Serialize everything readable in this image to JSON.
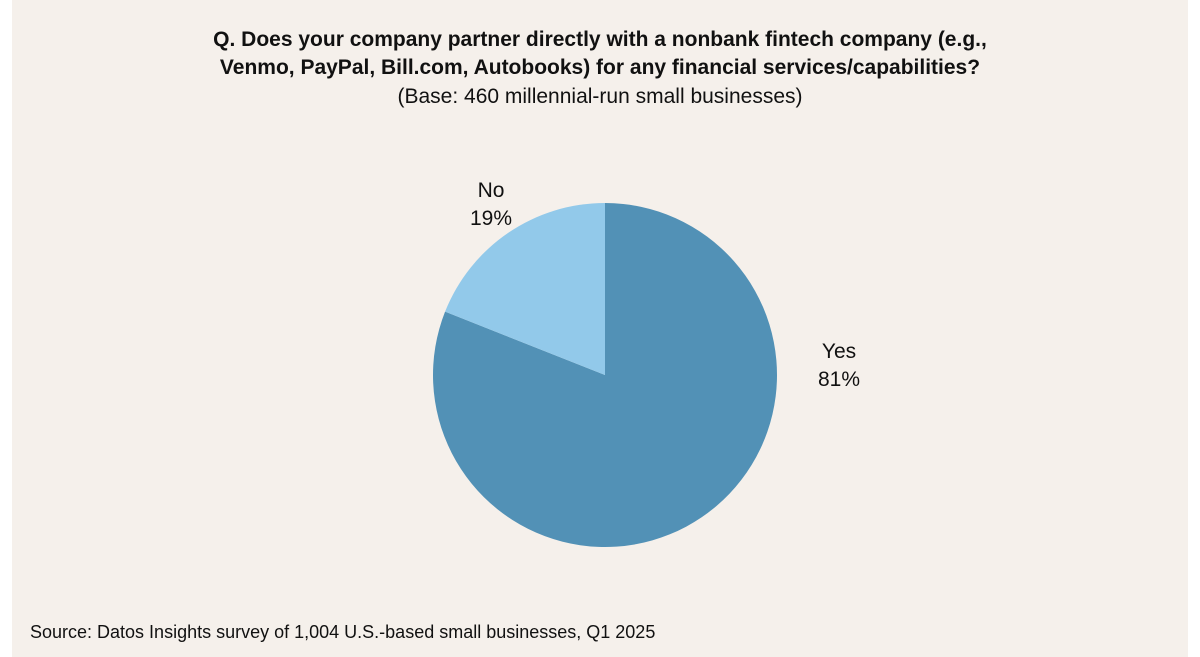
{
  "chart_data": {
    "type": "pie",
    "title_lines": [
      "Q. Does your company partner directly with a nonbank fintech company (e.g.,",
      "Venmo, PayPal, Bill.com, Autobooks) for any financial services/capabilities?"
    ],
    "subtitle": "(Base: 460 millennial-run small businesses)",
    "slices": [
      {
        "label": "Yes",
        "value": 81,
        "value_label": "81%",
        "color": "#5291b6"
      },
      {
        "label": "No",
        "value": 19,
        "value_label": "19%",
        "color": "#92c9ea"
      }
    ],
    "start": "12 o'clock",
    "direction": "clockwise",
    "legend": "none (labels outside slices)"
  },
  "source": "Source: Datos Insights survey of 1,004 U.S.-based small businesses, Q1 2025",
  "colors": {
    "background": "#f5f0eb",
    "yes": "#5291b6",
    "no": "#92c9ea",
    "text": "#111111"
  }
}
